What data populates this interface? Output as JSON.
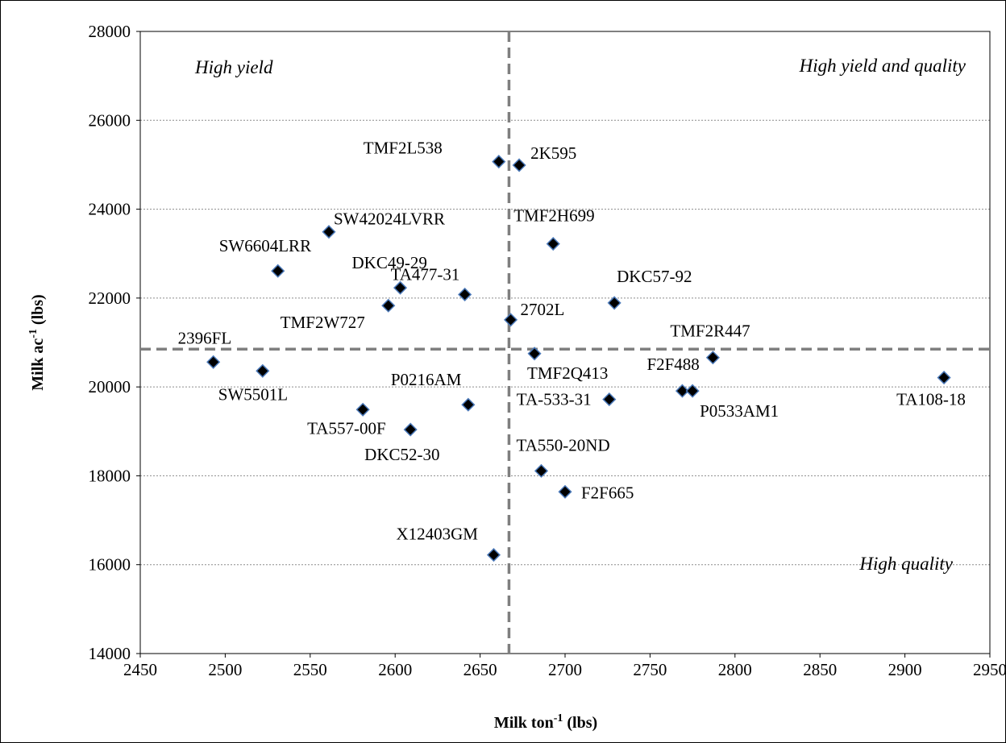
{
  "chart_data": {
    "type": "scatter",
    "title": "",
    "xlabel": "Milk ton",
    "xlabel_sup": "-1",
    "xlabel_unit": " (lbs)",
    "ylabel": "Milk ac",
    "ylabel_sup": "-1",
    "ylabel_unit": " (lbs)",
    "xlim": [
      2450,
      2950
    ],
    "ylim": [
      14000,
      28000
    ],
    "xticks": [
      "2450",
      "2500",
      "2550",
      "2600",
      "2650",
      "2700",
      "2750",
      "2800",
      "2850",
      "2900",
      "2950"
    ],
    "yticks": [
      "14000",
      "16000",
      "18000",
      "20000",
      "22000",
      "24000",
      "26000",
      "28000"
    ],
    "grid": "horizontal",
    "marker_color": "#000000",
    "marker_edge_color": "#4a78b8",
    "reference_lines": {
      "x": 2667,
      "y": 20850
    },
    "quadrant_labels": [
      "High yield",
      "High yield and quality",
      "High quality"
    ],
    "points": [
      {
        "label": "TMF2L538",
        "x": 2661,
        "y": 25070
      },
      {
        "label": "2K595",
        "x": 2673,
        "y": 24990
      },
      {
        "label": "SW42024LVRR",
        "x": 2561,
        "y": 23490
      },
      {
        "label": "TMF2H699",
        "x": 2693,
        "y": 23220
      },
      {
        "label": "SW6604LRR",
        "x": 2531,
        "y": 22610
      },
      {
        "label": "DKC49-29",
        "x": 2603,
        "y": 22230
      },
      {
        "label": "TA477-31",
        "x": 2641,
        "y": 22080
      },
      {
        "label": "DKC57-92",
        "x": 2729,
        "y": 21890
      },
      {
        "label": "TMF2W727",
        "x": 2596,
        "y": 21830
      },
      {
        "label": "2702L",
        "x": 2668,
        "y": 21510
      },
      {
        "label": "2396FL",
        "x": 2493,
        "y": 20560
      },
      {
        "label": "TMF2Q413",
        "x": 2682,
        "y": 20750
      },
      {
        "label": "TMF2R447",
        "x": 2787,
        "y": 20660
      },
      {
        "label": "SW5501L",
        "x": 2522,
        "y": 20360
      },
      {
        "label": "TA108-18",
        "x": 2923,
        "y": 20210
      },
      {
        "label": "F2F488",
        "x": 2769,
        "y": 19910
      },
      {
        "label": "P0533AM1",
        "x": 2775,
        "y": 19910
      },
      {
        "label": "TA-533-31",
        "x": 2726,
        "y": 19720
      },
      {
        "label": "P0216AM",
        "x": 2643,
        "y": 19600
      },
      {
        "label": "TA557-00F",
        "x": 2581,
        "y": 19490
      },
      {
        "label": "DKC52-30",
        "x": 2609,
        "y": 19040
      },
      {
        "label": "TA550-20ND",
        "x": 2686,
        "y": 18110
      },
      {
        "label": "F2F665",
        "x": 2700,
        "y": 17640
      },
      {
        "label": "X12403GM",
        "x": 2658,
        "y": 16220
      }
    ]
  }
}
